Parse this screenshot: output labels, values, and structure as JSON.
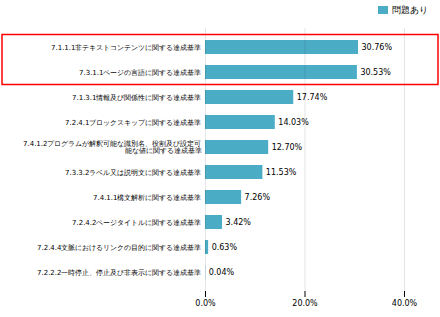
{
  "chart_data": {
    "type": "bar",
    "orientation": "horizontal",
    "categories": [
      "7.2.2.2一時停止、停止及び非表示に関する達成基準",
      "7.2.4.4文脈におけるリンクの目的に関する達成基準",
      "7.2.4.2ページタイトルに関する達成基準",
      "7.4.1.1構文解析に関する達成基準",
      "7.3.3.2ラベル又は説明文に関する達成基準",
      "7.4.1.2プログラムが解釈可能な識別名、役割及び設定可\n能な値に関する達成基準",
      "7.2.4.1ブロックスキップに関する達成基準",
      "7.1.3.1情報及び関係性に関する達成基準",
      "7.3.1.1ページの言語に関する達成基準",
      "7.1.1.1非テキストコンテンツに関する達成基準"
    ],
    "series": [
      {
        "name": "問題あり",
        "color": "#4bacc6",
        "values": [
          0.04,
          0.63,
          3.42,
          7.26,
          11.53,
          12.7,
          14.03,
          17.74,
          30.53,
          30.76
        ],
        "value_labels": [
          "0.04%",
          "0.63%",
          "3.42%",
          "7.26%",
          "11.53%",
          "12.70%",
          "14.03%",
          "17.74%",
          "30.53%",
          "30.76%"
        ]
      }
    ],
    "data_labels": true,
    "xlim": [
      0,
      40
    ],
    "xticks": [
      {
        "value": 0,
        "label": "0.0%"
      },
      {
        "value": 20,
        "label": "20.0%"
      },
      {
        "value": 40,
        "label": "40.0%"
      }
    ],
    "grid": true,
    "legend": "top-right"
  }
}
